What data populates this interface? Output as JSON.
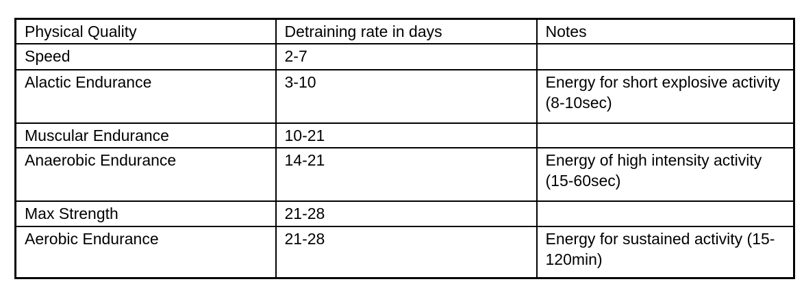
{
  "table": {
    "headers": [
      "Physical Quality",
      "Detraining rate in days",
      "Notes"
    ],
    "rows": [
      {
        "quality": "Speed",
        "rate": "2-7",
        "notes": ""
      },
      {
        "quality": "Alactic Endurance",
        "rate": "3-10",
        "notes": "Energy for short explosive activity (8-10sec)"
      },
      {
        "quality": "Muscular Endurance",
        "rate": "10-21",
        "notes": ""
      },
      {
        "quality": "Anaerobic Endurance",
        "rate": "14-21",
        "notes": "Energy of high intensity activity (15-60sec)"
      },
      {
        "quality": "Max Strength",
        "rate": "21-28",
        "notes": ""
      },
      {
        "quality": "Aerobic Endurance",
        "rate": "21-28",
        "notes": "Energy for sustained activity (15-120min)"
      }
    ],
    "colors": {
      "border": "#000000",
      "text": "#000000",
      "background": "#ffffff"
    }
  }
}
